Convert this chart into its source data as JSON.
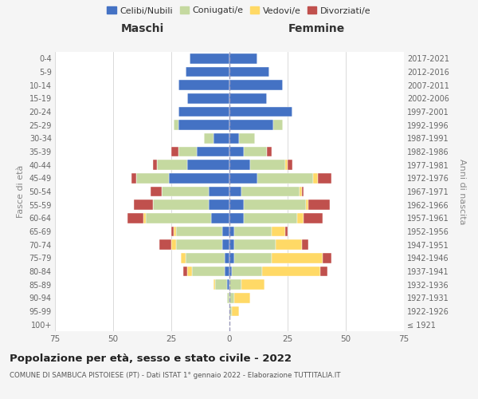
{
  "age_groups": [
    "100+",
    "95-99",
    "90-94",
    "85-89",
    "80-84",
    "75-79",
    "70-74",
    "65-69",
    "60-64",
    "55-59",
    "50-54",
    "45-49",
    "40-44",
    "35-39",
    "30-34",
    "25-29",
    "20-24",
    "15-19",
    "10-14",
    "5-9",
    "0-4"
  ],
  "birth_years": [
    "≤ 1921",
    "1922-1926",
    "1927-1931",
    "1932-1936",
    "1937-1941",
    "1942-1946",
    "1947-1951",
    "1952-1956",
    "1957-1961",
    "1962-1966",
    "1967-1971",
    "1972-1976",
    "1977-1981",
    "1982-1986",
    "1987-1991",
    "1992-1996",
    "1997-2001",
    "2002-2006",
    "2007-2011",
    "2012-2016",
    "2017-2021"
  ],
  "maschi": {
    "celibi": [
      0,
      0,
      0,
      1,
      2,
      2,
      3,
      3,
      8,
      9,
      9,
      26,
      18,
      14,
      7,
      22,
      22,
      18,
      22,
      19,
      17
    ],
    "coniugati": [
      0,
      0,
      1,
      5,
      14,
      17,
      20,
      20,
      28,
      24,
      20,
      14,
      13,
      8,
      4,
      2,
      0,
      0,
      0,
      0,
      0
    ],
    "vedovi": [
      0,
      0,
      0,
      1,
      2,
      2,
      2,
      1,
      1,
      0,
      0,
      0,
      0,
      0,
      0,
      0,
      0,
      0,
      0,
      0,
      0
    ],
    "divorziati": [
      0,
      0,
      0,
      0,
      2,
      0,
      5,
      1,
      7,
      8,
      5,
      2,
      2,
      3,
      0,
      0,
      0,
      0,
      0,
      0,
      0
    ]
  },
  "femmine": {
    "nubili": [
      0,
      0,
      0,
      0,
      1,
      2,
      2,
      2,
      6,
      6,
      5,
      12,
      9,
      6,
      4,
      19,
      27,
      16,
      23,
      17,
      12
    ],
    "coniugate": [
      0,
      1,
      2,
      5,
      13,
      16,
      18,
      16,
      23,
      27,
      25,
      24,
      15,
      10,
      7,
      4,
      0,
      0,
      0,
      0,
      0
    ],
    "vedove": [
      0,
      3,
      7,
      10,
      25,
      22,
      11,
      6,
      3,
      1,
      1,
      2,
      1,
      0,
      0,
      0,
      0,
      0,
      0,
      0,
      0
    ],
    "divorziate": [
      0,
      0,
      0,
      0,
      3,
      4,
      3,
      1,
      8,
      9,
      1,
      6,
      2,
      2,
      0,
      0,
      0,
      0,
      0,
      0,
      0
    ]
  },
  "colors": {
    "celibi": "#4472c4",
    "coniugati": "#c5d9a0",
    "vedovi": "#ffd966",
    "divorziati": "#c0504d"
  },
  "xlim": 75,
  "title": "Popolazione per età, sesso e stato civile - 2022",
  "subtitle": "COMUNE DI SAMBUCA PISTOIESE (PT) - Dati ISTAT 1° gennaio 2022 - Elaborazione TUTTITALIA.IT",
  "ylabel_left": "Fasce di età",
  "ylabel_right": "Anni di nascita",
  "xlabel_left": "Maschi",
  "xlabel_right": "Femmine",
  "bg_color": "#f5f5f5",
  "plot_bg_color": "#ffffff",
  "legend_labels": [
    "Celibi/Nubili",
    "Coniugati/e",
    "Vedovi/e",
    "Divorziati/e"
  ]
}
